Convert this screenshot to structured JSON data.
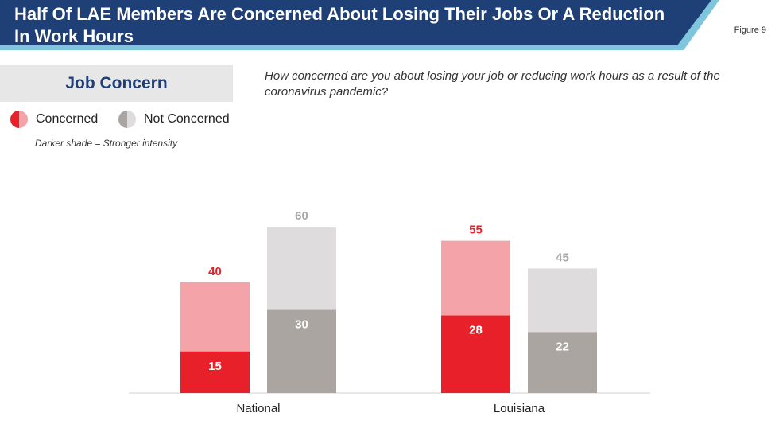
{
  "header": {
    "title": "Half Of LAE Members Are Concerned About Losing Their Jobs Or A Reduction In Work Hours",
    "figure_label": "Figure 9"
  },
  "section": {
    "title": "Job Concern"
  },
  "question": "How concerned are you about losing your job or reducing work hours as a result of the coronavirus pandemic?",
  "legend": {
    "items": [
      {
        "label": "Concerned",
        "icon": "half-circle-red-icon"
      },
      {
        "label": "Not Concerned",
        "icon": "half-circle-gray-icon"
      }
    ],
    "note": "Darker shade = Stronger intensity"
  },
  "colors": {
    "banner": "#1f3f77",
    "banner_accent": "#7fc6dd",
    "concerned_dark": "#e8202a",
    "concerned_light": "#f4a3a8",
    "not_concerned_dark": "#aaa5a0",
    "not_concerned_light": "#dedcdc",
    "concerned_total_text": "#e8202a",
    "not_concerned_total_text": "#a8a8a8"
  },
  "chart_data": {
    "type": "bar",
    "stacked": true,
    "categories": [
      "National",
      "Louisiana"
    ],
    "series": [
      {
        "name": "Concerned",
        "total": [
          40,
          55
        ],
        "strong": [
          15,
          28
        ]
      },
      {
        "name": "Not Concerned",
        "total": [
          60,
          45
        ],
        "strong": [
          30,
          22
        ]
      }
    ],
    "ylim": [
      0,
      60
    ]
  }
}
